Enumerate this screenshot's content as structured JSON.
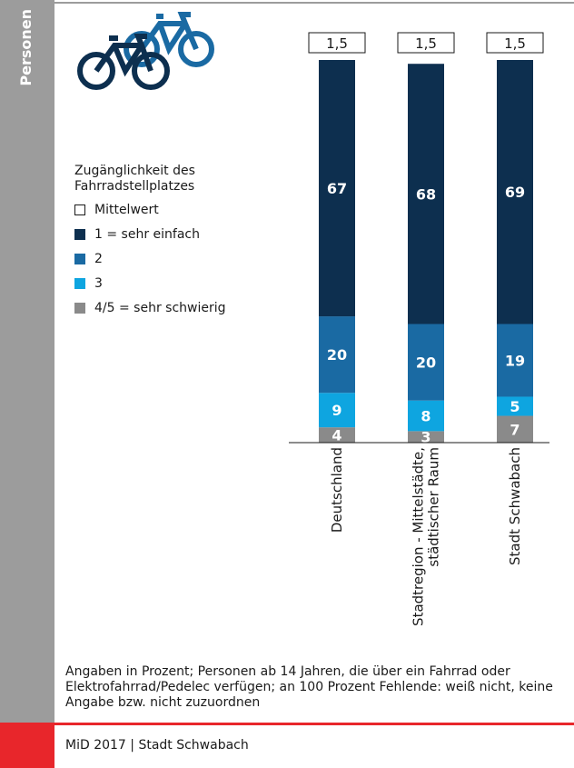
{
  "side_label": "Personen",
  "footer": "MiD 2017 | Stadt Schwabach",
  "note": "Angaben in Prozent; Personen ab 14 Jahren, die über ein Fahrrad oder Elektrofahrrad/Pedelec verfügen; an 100 Prozent Fehlende: weiß nicht, keine Angabe bzw. nicht zuzuordnen",
  "legend": {
    "title": "Zugänglichkeit des Fahrradstellplatzes",
    "items": [
      {
        "label": "Mittelwert",
        "color": "#ffffff"
      },
      {
        "label": "1 = sehr einfach",
        "color": "#0d2f4f"
      },
      {
        "label": "2",
        "color": "#1a6aa3"
      },
      {
        "label": "3",
        "color": "#0ea5e0"
      },
      {
        "label": "4/5 = sehr schwierig",
        "color": "#8a8a8a"
      }
    ]
  },
  "icon": "bicycles-icon",
  "chart_data": {
    "type": "bar",
    "stacked": true,
    "categories": [
      "Deutschland",
      "Stadtregion - Mittelstädte, städtischer Raum",
      "Stadt Schwabach"
    ],
    "category_lines": [
      [
        "Deutschland"
      ],
      [
        "Stadtregion - Mittelstädte,",
        "städtischer Raum"
      ],
      [
        "Stadt Schwabach"
      ]
    ],
    "series": [
      {
        "name": "4/5 = sehr schwierig",
        "values": [
          4,
          3,
          7
        ],
        "color": "#8a8a8a"
      },
      {
        "name": "3",
        "values": [
          9,
          8,
          5
        ],
        "color": "#0ea5e0"
      },
      {
        "name": "2",
        "values": [
          20,
          20,
          19
        ],
        "color": "#1a6aa3"
      },
      {
        "name": "1 = sehr einfach",
        "values": [
          67,
          68,
          69
        ],
        "color": "#0d2f4f"
      }
    ],
    "mean_values": [
      "1,5",
      "1,5",
      "1,5"
    ],
    "ylim": [
      0,
      100
    ]
  }
}
